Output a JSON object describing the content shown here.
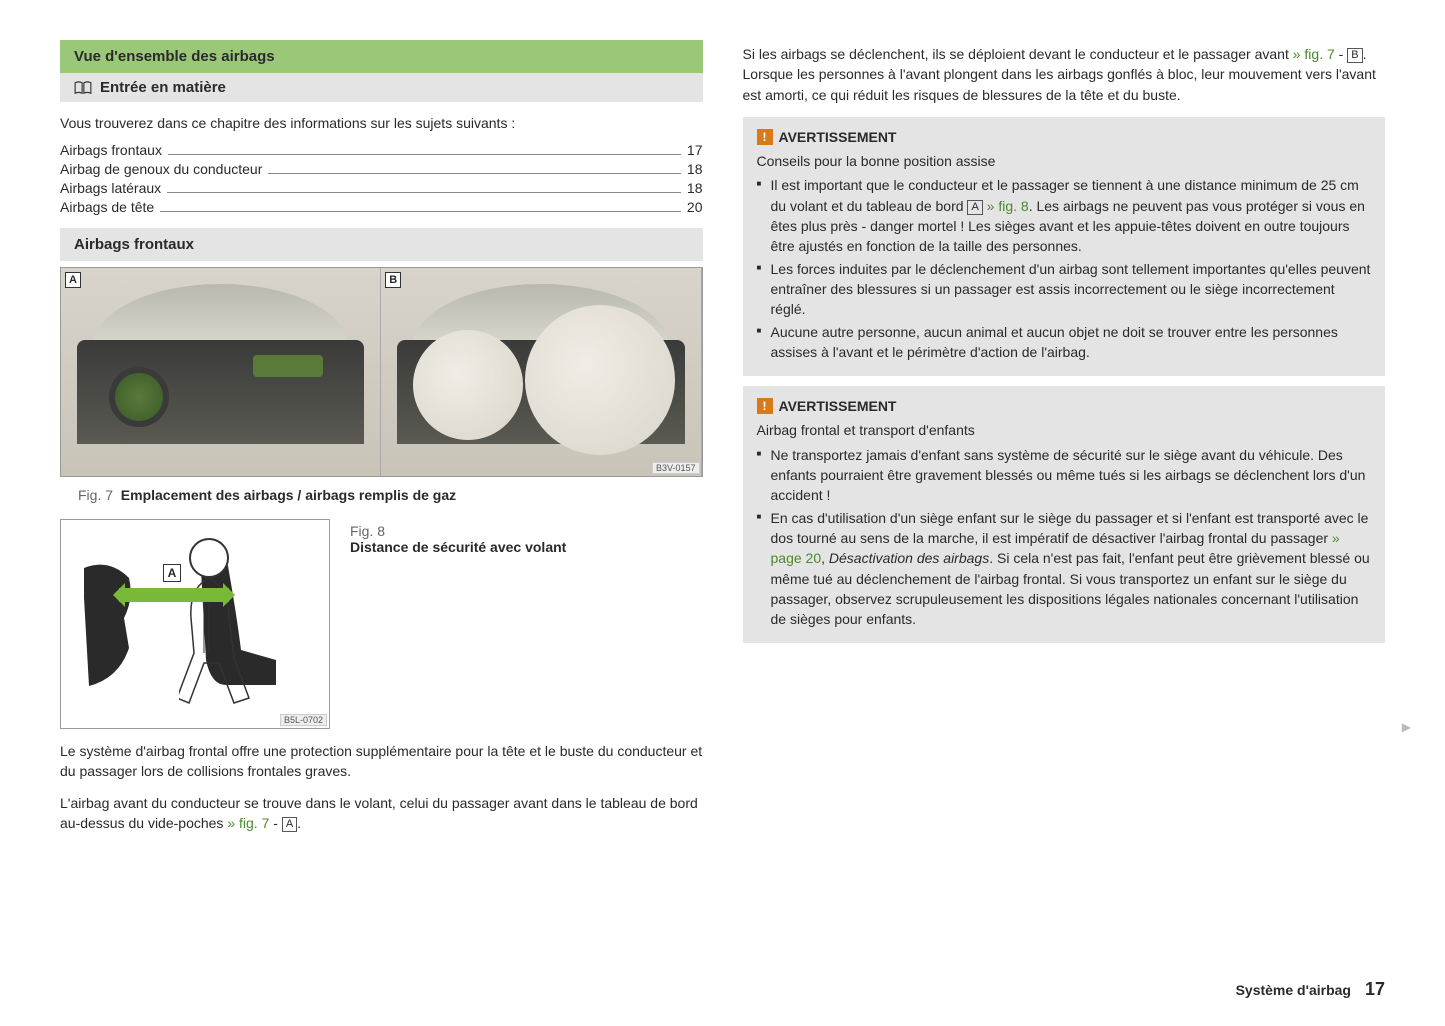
{
  "left": {
    "title_green": "Vue d'ensemble des airbags",
    "title_grey": "Entrée en matière",
    "intro": "Vous trouverez dans ce chapitre des informations sur les sujets suivants :",
    "toc": [
      {
        "label": "Airbags frontaux",
        "page": "17"
      },
      {
        "label": "Airbag de genoux du conducteur",
        "page": "18"
      },
      {
        "label": "Airbags latéraux",
        "page": "18"
      },
      {
        "label": "Airbags de tête",
        "page": "20"
      }
    ],
    "section2": "Airbags frontaux",
    "fig7": {
      "labelA": "A",
      "labelB": "B",
      "code": "B3V-0157",
      "caption_prefix": "Fig. 7",
      "caption": "Emplacement des airbags / airbags remplis de gaz"
    },
    "fig8": {
      "caption_prefix": "Fig. 8",
      "caption": "Distance de sécurité avec volant",
      "labelA": "A",
      "code": "B5L-0702"
    },
    "para1": "Le système d'airbag frontal offre une protection supplémentaire pour la tête et le buste du conducteur et du passager lors de collisions frontales graves.",
    "para2a": "L'airbag avant du conducteur se trouve dans le volant, celui du passager avant dans le tableau de bord au-dessus du vide-poches ",
    "para2_ref": "» fig. 7",
    "para2_box": "A",
    "para2b": "."
  },
  "right": {
    "para1a": "Si les airbags se déclenchent, ils se déploient devant le conducteur et le passager avant ",
    "para1_ref": "» fig. 7",
    "para1_box": "B",
    "para1b": ". Lorsque les personnes à l'avant plongent dans les airbags gonflés à bloc, leur mouvement vers l'avant est amorti, ce qui réduit les risques de blessures de la tête et du buste.",
    "warn1": {
      "title": "AVERTISSEMENT",
      "sub": "Conseils pour la bonne position assise",
      "li1a": "Il est important que le conducteur et le passager se tiennent à une distance minimum de 25 cm du volant et du tableau de bord ",
      "li1_box": "A",
      "li1_ref": "» fig. 8",
      "li1b": ". Les airbags ne peuvent pas vous protéger si vous en êtes plus près - danger mortel ! Les sièges avant et les appuie-têtes doivent en outre toujours être ajustés en fonction de la taille des personnes.",
      "li2": "Les forces induites par le déclenchement d'un airbag sont tellement importantes qu'elles peuvent entraîner des blessures si un passager est assis incorrectement ou le siège incorrectement réglé.",
      "li3": "Aucune autre personne, aucun animal et aucun objet ne doit se trouver entre les personnes assises à l'avant et le périmètre d'action de l'airbag."
    },
    "warn2": {
      "title": "AVERTISSEMENT",
      "sub": "Airbag frontal et transport d'enfants",
      "li1": "Ne transportez jamais d'enfant sans système de sécurité sur le siège avant du véhicule. Des enfants pourraient être gravement blessés ou même tués si les airbags se déclenchent lors d'un accident !",
      "li2a": "En cas d'utilisation d'un siège enfant sur le siège du passager et si l'enfant est transporté avec le dos tourné au sens de la marche, il est impératif de désactiver l'airbag frontal du passager ",
      "li2_ref": "» page 20",
      "li2_ital": "Désactivation des airbags",
      "li2b": ". Si cela n'est pas fait, l'enfant peut être grièvement blessé ou même tué au déclenchement de l'airbag frontal. Si vous transportez un enfant sur le siège du passager, observez scrupuleusement les dispositions légales nationales concernant l'utilisation de sièges pour enfants."
    }
  },
  "footer": {
    "section": "Système d'airbag",
    "page": "17"
  }
}
